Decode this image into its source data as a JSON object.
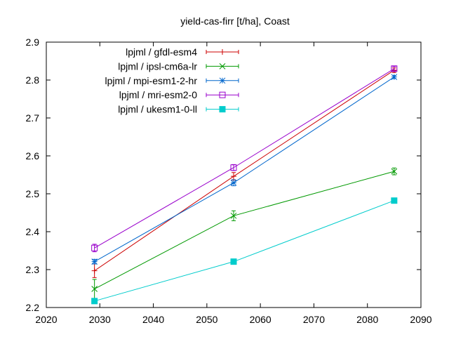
{
  "chart_data": {
    "type": "line",
    "title": "yield-cas-firr [t/ha], Coast",
    "xlabel": "",
    "ylabel": "",
    "xlim": [
      2020,
      2090
    ],
    "ylim": [
      2.2,
      2.9
    ],
    "xticks": [
      2020,
      2030,
      2040,
      2050,
      2060,
      2070,
      2080,
      2090
    ],
    "yticks": [
      2.2,
      2.3,
      2.4,
      2.5,
      2.6,
      2.7,
      2.8,
      2.9
    ],
    "grid": false,
    "legend_position": "top-left",
    "series": [
      {
        "name": "lpjml / gfdl-esm4",
        "color": "#cc0000",
        "marker": "plus",
        "x": [
          2029,
          2055,
          2085
        ],
        "y": [
          2.297,
          2.546,
          2.826
        ],
        "err": [
          0.018,
          0.01,
          0.006
        ]
      },
      {
        "name": "lpjml / ipsl-cm6a-lr",
        "color": "#009900",
        "marker": "cross",
        "x": [
          2029,
          2055,
          2085
        ],
        "y": [
          2.249,
          2.442,
          2.559
        ],
        "err": [
          0.025,
          0.013,
          0.009
        ]
      },
      {
        "name": "lpjml / mpi-esm1-2-hr",
        "color": "#0066cc",
        "marker": "star",
        "x": [
          2029,
          2055,
          2085
        ],
        "y": [
          2.321,
          2.529,
          2.808
        ],
        "err": [
          0.006,
          0.008,
          0.004
        ]
      },
      {
        "name": "lpjml / mri-esm2-0",
        "color": "#9900cc",
        "marker": "open-square",
        "x": [
          2029,
          2055,
          2085
        ],
        "y": [
          2.357,
          2.569,
          2.83
        ],
        "err": [
          0.01,
          0.008,
          0.006
        ]
      },
      {
        "name": "lpjml / ukesm1-0-ll",
        "color": "#00cccc",
        "marker": "filled-square",
        "x": [
          2029,
          2055,
          2085
        ],
        "y": [
          2.217,
          2.321,
          2.482
        ],
        "err": [
          0.004,
          0.003,
          0.003
        ]
      }
    ]
  }
}
